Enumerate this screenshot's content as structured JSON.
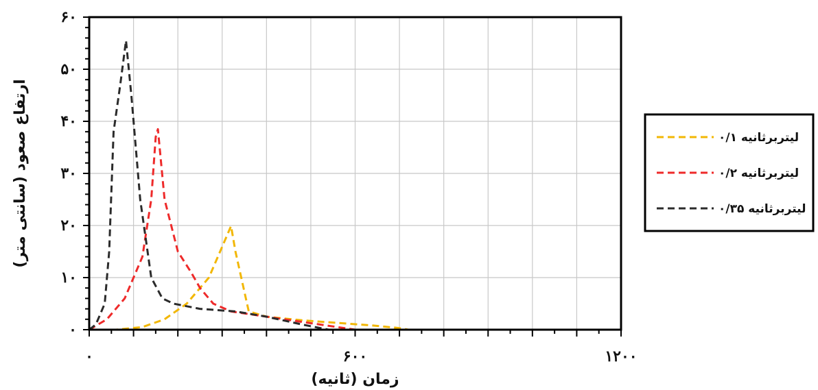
{
  "chart_data": {
    "type": "line",
    "xlabel": "زمان (ثانیه)",
    "ylabel": "ارتفاع صعود (سانتی متر)",
    "xlim": [
      0,
      1200
    ],
    "ylim": [
      0,
      60
    ],
    "x_ticks": [
      {
        "value": 0,
        "label": "۰"
      },
      {
        "value": 600,
        "label": "۶۰۰"
      },
      {
        "value": 1200,
        "label": "۱۲۰۰"
      }
    ],
    "y_ticks": [
      {
        "value": 0,
        "label": "۰"
      },
      {
        "value": 10,
        "label": "۱۰"
      },
      {
        "value": 20,
        "label": "۲۰"
      },
      {
        "value": 30,
        "label": "۳۰"
      },
      {
        "value": 40,
        "label": "۴۰"
      },
      {
        "value": 50,
        "label": "۵۰"
      },
      {
        "value": 60,
        "label": "۶۰"
      }
    ],
    "grid": true,
    "legend_position": "right",
    "series": [
      {
        "name": "۰/۱ لیتربرثانیه",
        "color": "#f2b705",
        "dash": "dashed",
        "points": [
          [
            0,
            0
          ],
          [
            60,
            0
          ],
          [
            120,
            0.5
          ],
          [
            170,
            2
          ],
          [
            220,
            5
          ],
          [
            270,
            10
          ],
          [
            320,
            19.9
          ],
          [
            330,
            15
          ],
          [
            360,
            3.5
          ],
          [
            400,
            2.5
          ],
          [
            480,
            1.8
          ],
          [
            560,
            1.3
          ],
          [
            640,
            0.8
          ],
          [
            700,
            0.3
          ],
          [
            720,
            0
          ]
        ]
      },
      {
        "name": "۰/۲ لیتربرثانیه",
        "color": "#ee2a2a",
        "dash": "dashed",
        "points": [
          [
            0,
            0
          ],
          [
            40,
            2
          ],
          [
            80,
            6
          ],
          [
            120,
            14
          ],
          [
            140,
            25
          ],
          [
            150,
            37
          ],
          [
            155,
            38.5
          ],
          [
            170,
            25
          ],
          [
            200,
            15
          ],
          [
            230,
            11
          ],
          [
            250,
            8
          ],
          [
            280,
            5
          ],
          [
            320,
            3.5
          ],
          [
            400,
            2.5
          ],
          [
            480,
            1.5
          ],
          [
            560,
            0.5
          ],
          [
            600,
            0
          ]
        ]
      },
      {
        "name": "۰/۳۵ لیتربرثانیه",
        "color": "#2b2b2b",
        "dash": "dashed",
        "points": [
          [
            0,
            0
          ],
          [
            15,
            1
          ],
          [
            35,
            5
          ],
          [
            45,
            15
          ],
          [
            55,
            38
          ],
          [
            70,
            47
          ],
          [
            83,
            55.5
          ],
          [
            95,
            45
          ],
          [
            115,
            25
          ],
          [
            140,
            10
          ],
          [
            165,
            6
          ],
          [
            190,
            5
          ],
          [
            250,
            4
          ],
          [
            330,
            3.5
          ],
          [
            400,
            2.5
          ],
          [
            480,
            1
          ],
          [
            540,
            0
          ],
          [
            600,
            0
          ]
        ]
      }
    ]
  }
}
